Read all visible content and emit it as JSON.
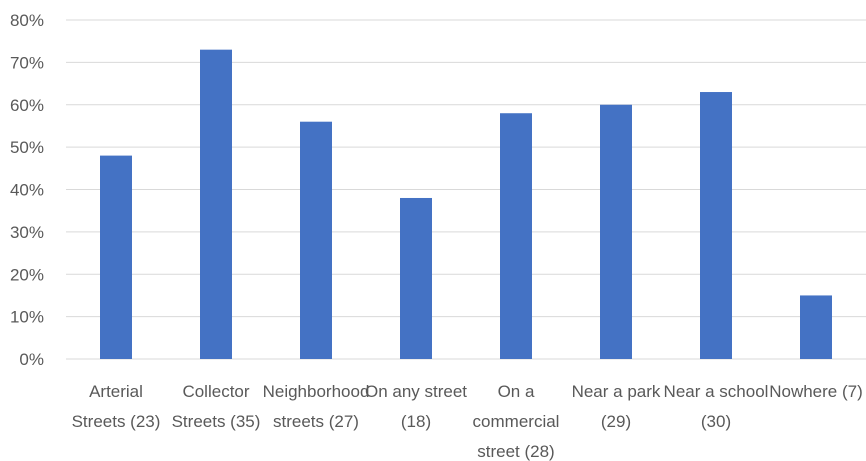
{
  "chart_data": {
    "type": "bar",
    "categories": [
      [
        "Arterial",
        "Streets (23)"
      ],
      [
        "Collector",
        "Streets (35)"
      ],
      [
        "Neighborhood",
        "streets (27)"
      ],
      [
        "On any street",
        "(18)"
      ],
      [
        "On a",
        "commercial",
        "street (28)"
      ],
      [
        "Near a park",
        "(29)"
      ],
      [
        "Near a school",
        "(30)"
      ],
      [
        "Nowhere (7)"
      ]
    ],
    "values": [
      48,
      73,
      56,
      38,
      58,
      60,
      63,
      15
    ],
    "ylim": [
      0,
      80
    ],
    "yticks": [
      "0%",
      "10%",
      "20%",
      "30%",
      "40%",
      "50%",
      "60%",
      "70%",
      "80%"
    ],
    "grid": true,
    "bar_color": "#4472C4",
    "grid_color": "#D9D9D9"
  }
}
